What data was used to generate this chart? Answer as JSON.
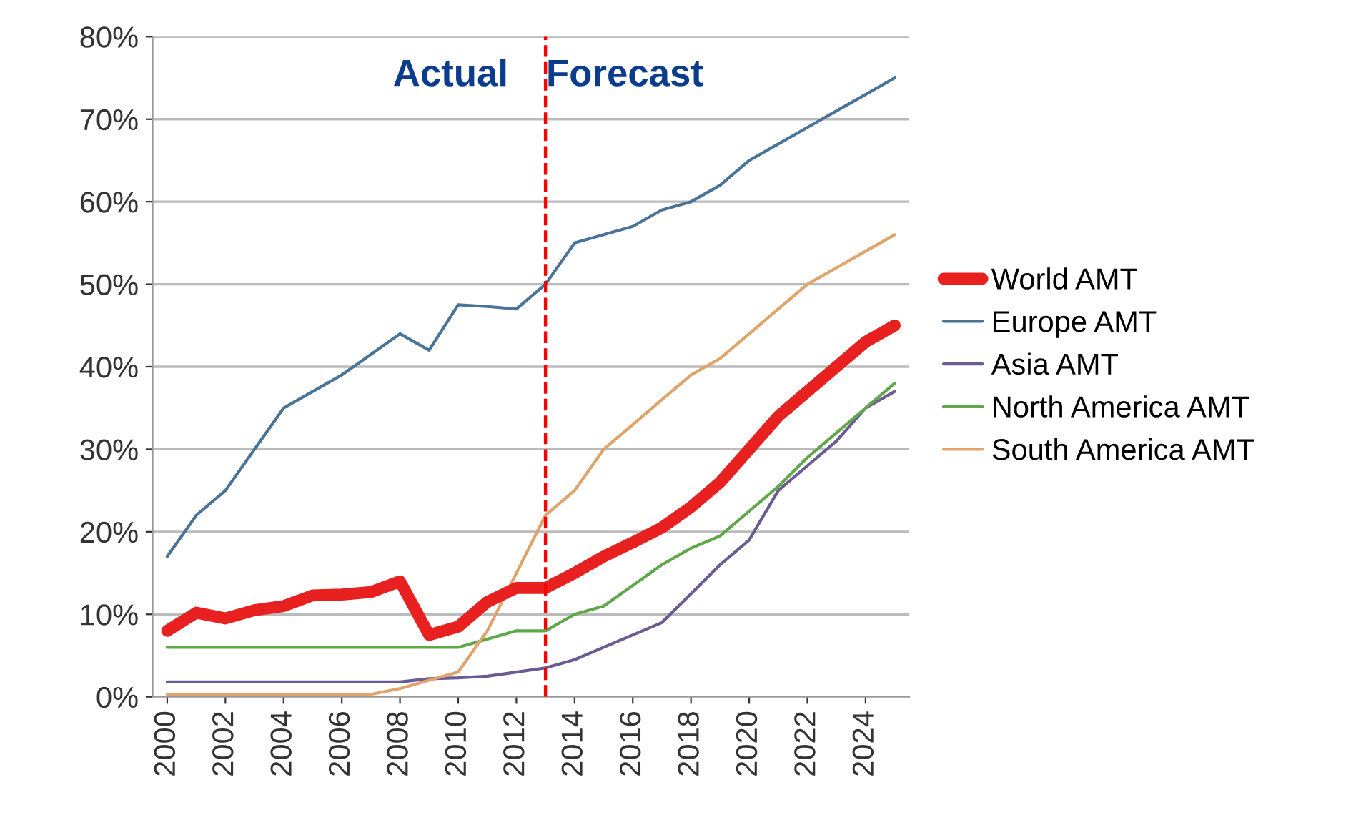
{
  "chart_data": {
    "type": "line",
    "x": [
      2000,
      2001,
      2002,
      2003,
      2004,
      2005,
      2006,
      2007,
      2008,
      2009,
      2010,
      2011,
      2012,
      2013,
      2014,
      2015,
      2016,
      2017,
      2018,
      2019,
      2020,
      2021,
      2022,
      2023,
      2024,
      2025
    ],
    "series": [
      {
        "name": "World AMT",
        "color": "#e8201f",
        "values": [
          8,
          10.2,
          9.5,
          10.5,
          11,
          12.3,
          12.4,
          12.7,
          14,
          7.5,
          8.5,
          11.5,
          13.2,
          13.2,
          15,
          17,
          18.7,
          20.5,
          23,
          26,
          30,
          34,
          37,
          40,
          43,
          45
        ]
      },
      {
        "name": "Europe AMT",
        "color": "#4a7399",
        "values": [
          17,
          22,
          25,
          30,
          35,
          37,
          39,
          41.5,
          44,
          42,
          47.5,
          47.3,
          47,
          50,
          55,
          56,
          57,
          59,
          60,
          62,
          65,
          67,
          69,
          71,
          73,
          75
        ]
      },
      {
        "name": "Asia AMT",
        "color": "#6b5b95",
        "values": [
          1.8,
          1.8,
          1.8,
          1.8,
          1.8,
          1.8,
          1.8,
          1.8,
          1.8,
          2.2,
          2.3,
          2.5,
          3,
          3.5,
          4.5,
          6,
          7.5,
          9,
          12.5,
          16,
          19,
          25,
          28,
          31,
          35,
          37
        ]
      },
      {
        "name": "North America AMT",
        "color": "#5fa84a",
        "values": [
          6,
          6,
          6,
          6,
          6,
          6,
          6,
          6,
          6,
          6,
          6,
          7,
          8,
          8,
          10,
          11,
          13.5,
          16,
          18,
          19.5,
          22.5,
          25.5,
          29,
          32,
          35,
          38
        ]
      },
      {
        "name": "South America AMT",
        "color": "#e0a46a",
        "values": [
          0.3,
          0.3,
          0.3,
          0.3,
          0.3,
          0.3,
          0.3,
          0.3,
          1,
          2,
          3,
          8,
          15,
          22,
          25,
          30,
          33,
          36,
          39,
          41,
          44,
          47,
          50,
          52,
          54,
          56
        ]
      }
    ],
    "xlim": [
      1999.5,
      2025.5
    ],
    "xticks": [
      2000,
      2002,
      2004,
      2006,
      2008,
      2010,
      2012,
      2014,
      2016,
      2018,
      2020,
      2022,
      2024
    ],
    "ylim": [
      0,
      80
    ],
    "yticks": [
      {
        "value": 0,
        "label": "0%"
      },
      {
        "value": 10,
        "label": "10%"
      },
      {
        "value": 20,
        "label": "20%"
      },
      {
        "value": 30,
        "label": "30%"
      },
      {
        "value": 40,
        "label": "40%"
      },
      {
        "value": 50,
        "label": "50%"
      },
      {
        "value": 60,
        "label": "60%"
      },
      {
        "value": 70,
        "label": "70%"
      },
      {
        "value": 80,
        "label": "80%"
      }
    ],
    "ref_lines": [
      {
        "axis": "x",
        "value": 2013,
        "label": null,
        "color": "#ff0000",
        "line_style": "dashed"
      }
    ],
    "annotations": [
      "Actual",
      "Forecast"
    ],
    "grid": "y",
    "legend": "right",
    "marker": "none",
    "line_style": "solid"
  }
}
